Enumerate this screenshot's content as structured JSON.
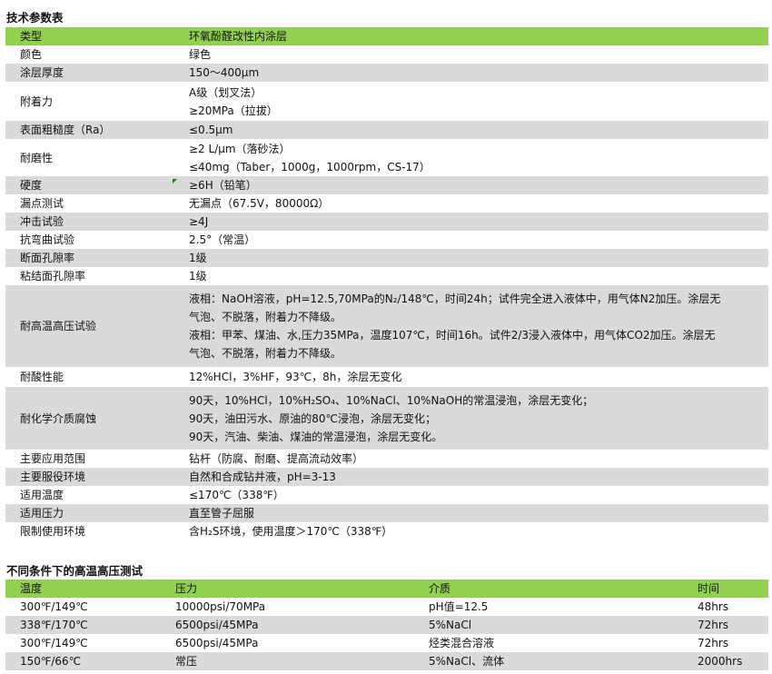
{
  "spec_title": "技术参数表",
  "spec_rows": [
    {
      "k": "类型",
      "v": [
        "环氧酚醛改性内涂层"
      ]
    },
    {
      "k": "颜色",
      "v": [
        "绿色"
      ]
    },
    {
      "k": "涂层厚度",
      "v": [
        "150～400μm"
      ]
    },
    {
      "k": "附着力",
      "v": [
        "A级（划叉法）",
        "≥20MPa（拉拔）"
      ]
    },
    {
      "k": "表面粗糙度（Ra）",
      "v": [
        "≤0.5μm"
      ]
    },
    {
      "k": "耐磨性",
      "v": [
        "≥2 L/μm（落砂法）",
        "≤40mg（Taber，1000g，1000rpm，CS-17）"
      ]
    },
    {
      "k": "硬度",
      "v": [
        "≥6H（铅笔）"
      ]
    },
    {
      "k": "漏点测试",
      "v": [
        "无漏点（67.5V，80000Ω）"
      ]
    },
    {
      "k": "冲击试验",
      "v": [
        "≥4J"
      ]
    },
    {
      "k": "抗弯曲试验",
      "v": [
        "2.5°（常温）"
      ]
    },
    {
      "k": "断面孔隙率",
      "v": [
        "1级"
      ]
    },
    {
      "k": "粘结面孔隙率",
      "v": [
        "1级"
      ]
    },
    {
      "k": "耐高温高压试验",
      "v": [
        "液相：NaOH溶液，pH=12.5,70MPa的N₂/148℃，时间24h；试件完全进入液体中，用气体N2加压。涂层无",
        "气泡、不脱落，附着力不降级。",
        "液相：甲苯、煤油、水,压力35MPa，温度107℃，时间16h。试件2/3浸入液体中，用气体CO2加压。涂层无",
        "气泡、不脱落，附着力不降级。"
      ]
    },
    {
      "k": "耐酸性能",
      "v": [
        "12%HCl，3%HF，93℃，8h，涂层无变化"
      ]
    },
    {
      "k": "耐化学介质腐蚀",
      "v": [
        "90天，10%HCl，10%H₂SO₄、10%NaCl、10%NaOH的常温浸泡，涂层无变化；",
        "90天，油田污水、原油的80℃浸泡，涂层无变化；",
        "90天，汽油、柴油、煤油的常温浸泡，涂层无变化。"
      ]
    },
    {
      "k": "主要应用范围",
      "v": [
        "钻杆（防腐、耐磨、提高流动效率）"
      ]
    },
    {
      "k": "主要服役环境",
      "v": [
        "自然和合成钻井液，pH=3-13"
      ]
    },
    {
      "k": "适用温度",
      "v": [
        "≤170℃（338℉）"
      ]
    },
    {
      "k": "适用压力",
      "v": [
        "直至管子屈服"
      ]
    },
    {
      "k": "限制使用环境",
      "v": [
        "含H₂S环境，使用温度＞170℃（338℉）"
      ]
    }
  ],
  "test_title": "不同条件下的高温高压测试",
  "test_headers": [
    "温度",
    "压力",
    "介质",
    "时间"
  ],
  "test_rows": [
    [
      "300℉/149℃",
      "10000psi/70MPa",
      "pH值=12.5",
      "48hrs"
    ],
    [
      "338℉/170℃",
      "6500psi/45MPa",
      "5%NaCl",
      "72hrs"
    ],
    [
      "300℉/149℃",
      "6500psi/45MPa",
      "烃类混合溶液",
      "72hrs"
    ],
    [
      "150℉/66℃",
      "常压",
      "5%NaCl、流体",
      "2000hrs"
    ]
  ],
  "colors": {
    "header_green": "#92d050",
    "stripe_gray": "#dadada"
  }
}
